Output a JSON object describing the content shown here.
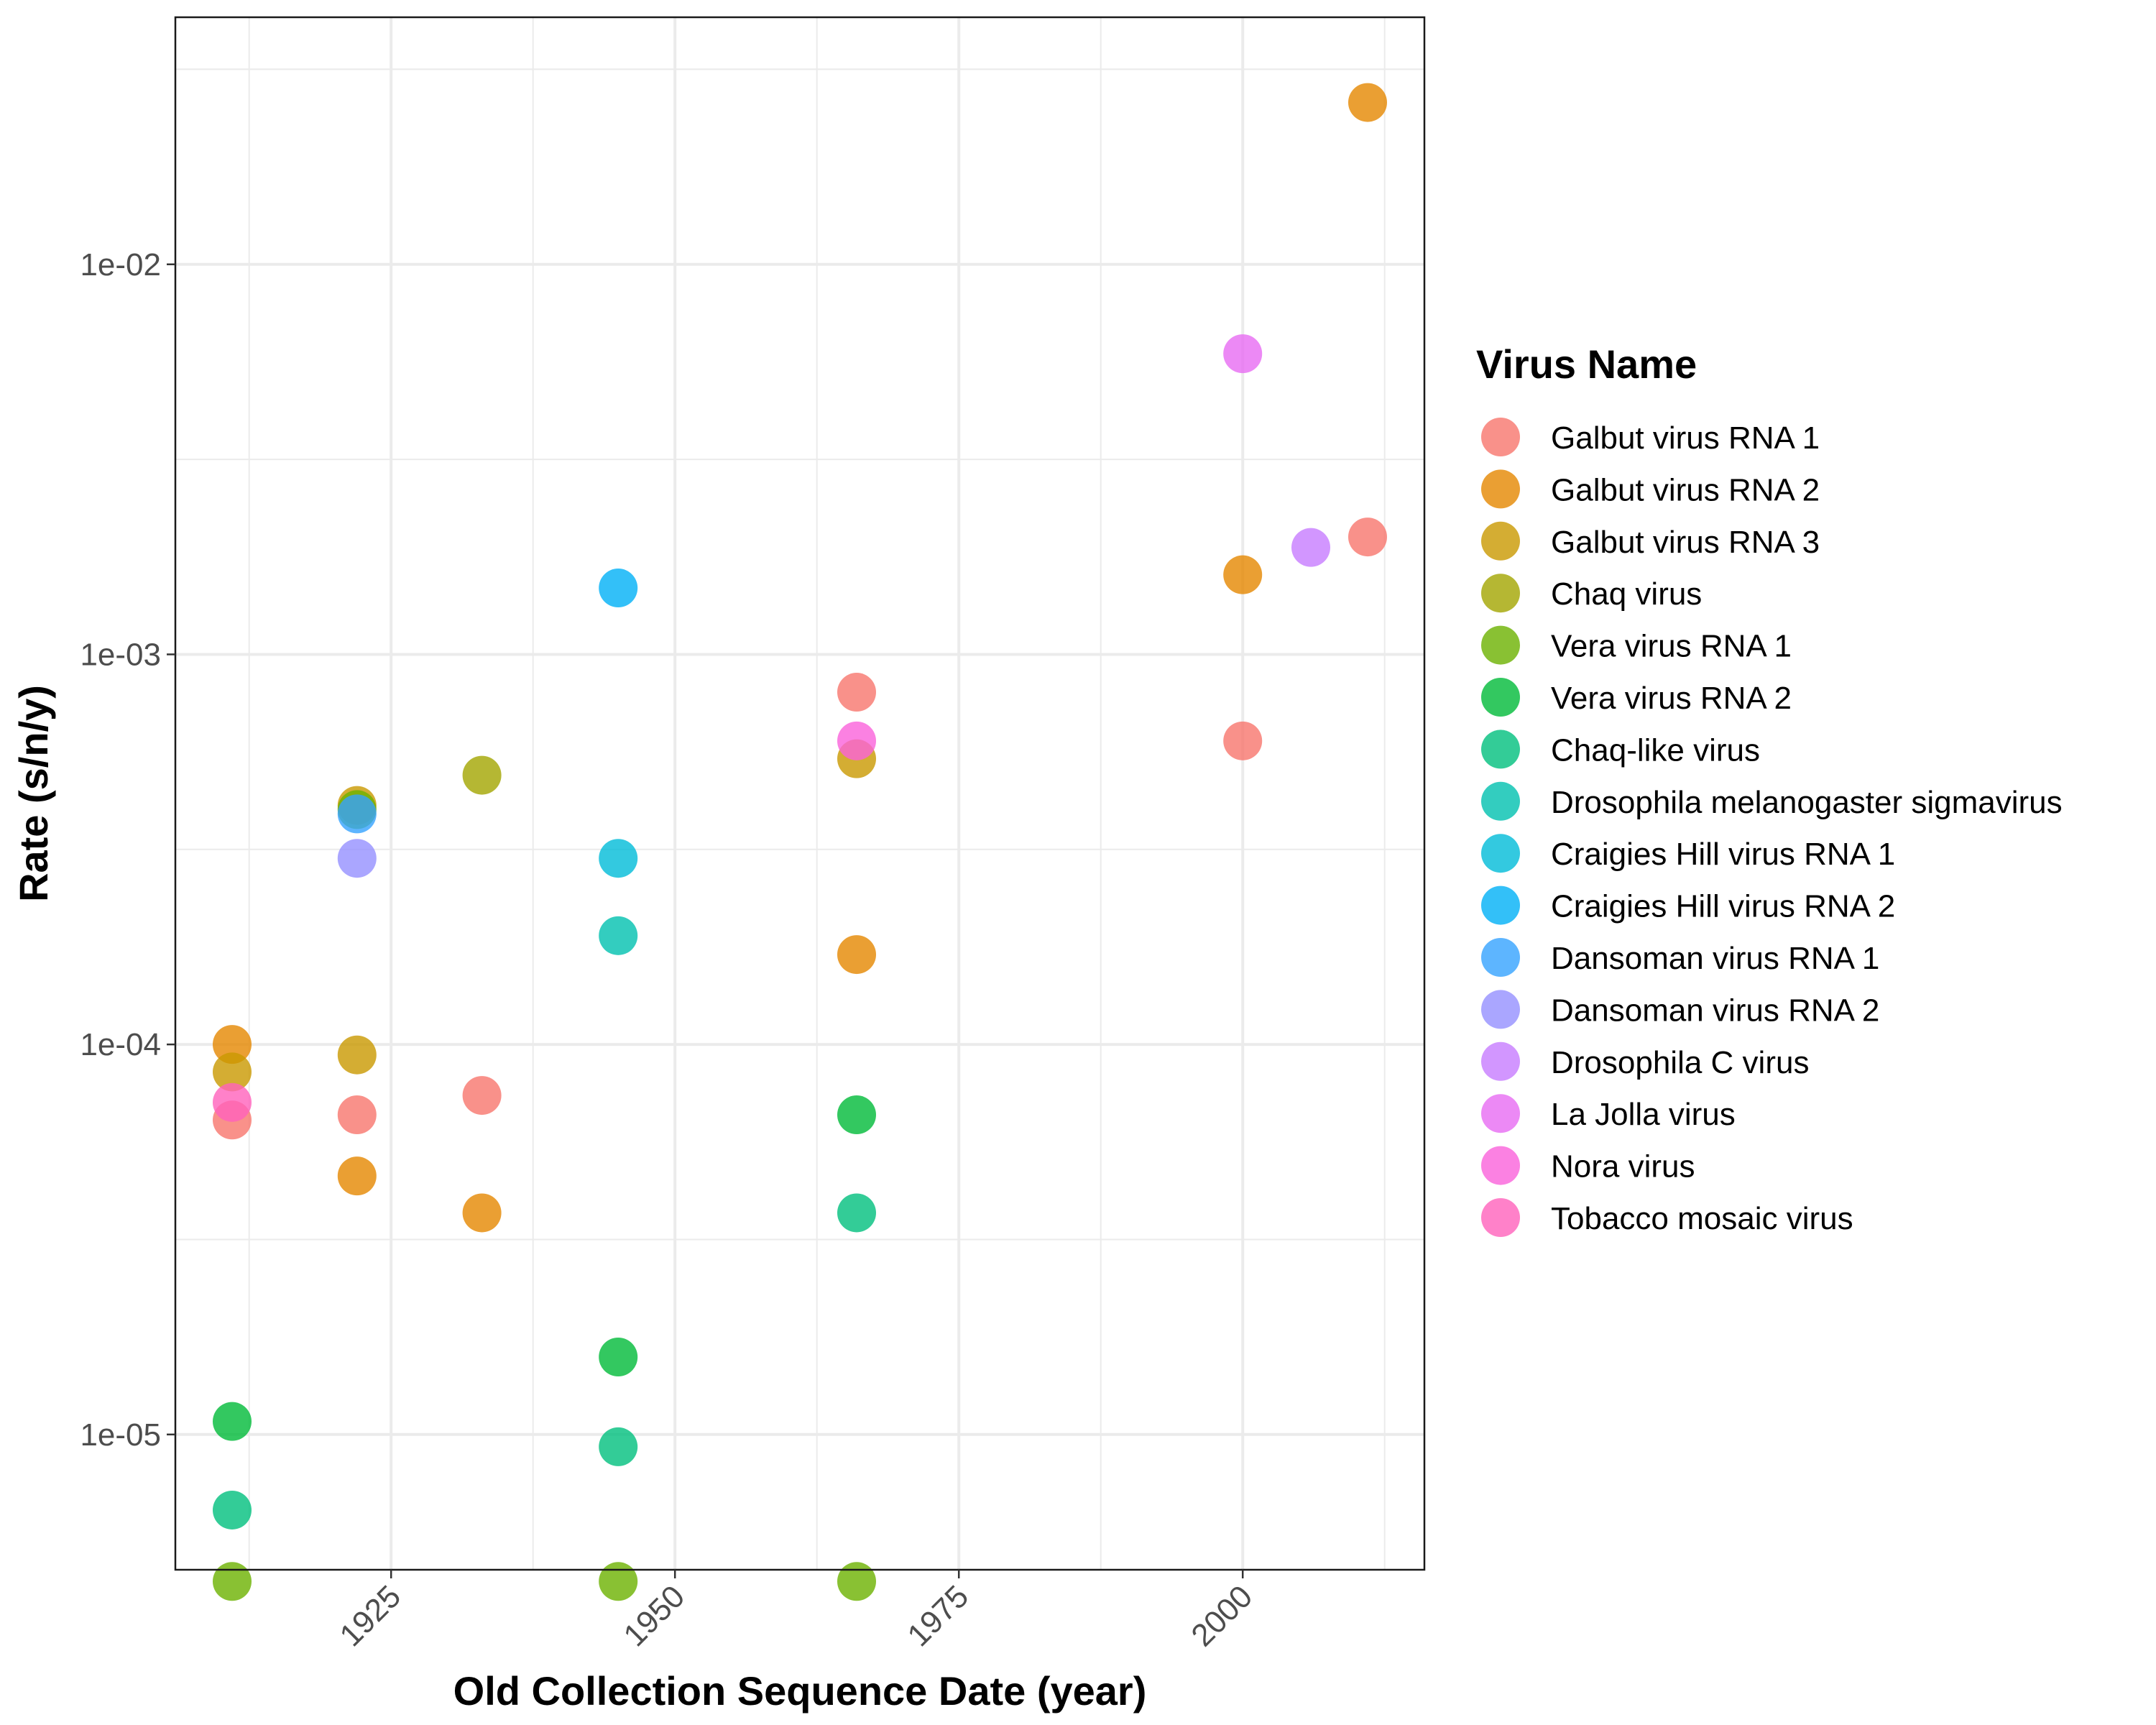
{
  "chart_data": {
    "type": "scatter",
    "xlabel": "Old Collection Sequence Date (year)",
    "ylabel": "Rate (s/n/y)",
    "y_scale": "log10",
    "xlim": [
      1906,
      2016
    ],
    "ylim": [
      4.5e-06,
      0.043
    ],
    "x_ticks": [
      1925,
      1950,
      1975,
      2000
    ],
    "x_tick_labels": [
      "1925",
      "1950",
      "1975",
      "2000"
    ],
    "y_ticks": [
      1e-05,
      0.0001,
      0.001,
      0.01
    ],
    "y_tick_labels": [
      "1e-05",
      "1e-04",
      "1e-03",
      "1e-02"
    ],
    "grid": true,
    "legend_title": "Virus Name",
    "legend_position": "right",
    "series": [
      {
        "name": "Galbut virus RNA 1",
        "color": "#F8766D",
        "points": [
          [
            1911,
            6.4e-05
          ],
          [
            1922,
            6.6e-05
          ],
          [
            1933,
            7.4e-05
          ],
          [
            1966,
            0.0008
          ],
          [
            2000,
            0.0006
          ],
          [
            2011,
            0.002
          ]
        ]
      },
      {
        "name": "Galbut virus RNA 2",
        "color": "#E58700",
        "points": [
          [
            1911,
            0.0001
          ],
          [
            1922,
            4.6e-05
          ],
          [
            1933,
            3.7e-05
          ],
          [
            1966,
            0.00017
          ],
          [
            2000,
            0.0016
          ],
          [
            2011,
            0.026
          ]
        ]
      },
      {
        "name": "Galbut virus RNA 3",
        "color": "#C99800",
        "points": [
          [
            1911,
            8.5e-05
          ],
          [
            1922,
            0.00041
          ],
          [
            1922,
            9.4e-05
          ],
          [
            1966,
            0.00054
          ]
        ]
      },
      {
        "name": "Chaq virus",
        "color": "#A3A500",
        "points": [
          [
            1933,
            0.00049
          ]
        ]
      },
      {
        "name": "Vera virus RNA 1",
        "color": "#6BB100",
        "points": [
          [
            1911,
            4.2e-06
          ],
          [
            1922,
            0.0004
          ],
          [
            1945,
            4.2e-06
          ],
          [
            1966,
            4.2e-06
          ]
        ]
      },
      {
        "name": "Vera virus RNA 2",
        "color": "#00BA38",
        "points": [
          [
            1911,
            1.08e-05
          ],
          [
            1945,
            1.58e-05
          ],
          [
            1966,
            6.6e-05
          ]
        ]
      },
      {
        "name": "Chaq-like virus",
        "color": "#00BF7D",
        "points": [
          [
            1911,
            6.4e-06
          ],
          [
            1945,
            9.3e-06
          ],
          [
            1966,
            3.7e-05
          ]
        ]
      },
      {
        "name": "Drosophila melanogaster sigmavirus",
        "color": "#00C0AF",
        "points": [
          [
            1945,
            0.00019
          ]
        ]
      },
      {
        "name": "Craigies Hill virus RNA 1",
        "color": "#00BCD8",
        "points": [
          [
            1945,
            0.0003
          ]
        ]
      },
      {
        "name": "Craigies Hill virus RNA 2",
        "color": "#00B0F6",
        "points": [
          [
            1945,
            0.00148
          ]
        ]
      },
      {
        "name": "Dansoman virus RNA 1",
        "color": "#35A2FF",
        "points": [
          [
            1922,
            0.00039
          ]
        ]
      },
      {
        "name": "Dansoman virus RNA 2",
        "color": "#9590FF",
        "points": [
          [
            1922,
            0.0003
          ]
        ]
      },
      {
        "name": "Drosophila C virus",
        "color": "#C77CFF",
        "points": [
          [
            2006,
            0.00188
          ]
        ]
      },
      {
        "name": "La Jolla virus",
        "color": "#E76BF3",
        "points": [
          [
            2000,
            0.0059
          ]
        ]
      },
      {
        "name": "Nora virus",
        "color": "#FA62DB",
        "points": [
          [
            1966,
            0.0006
          ]
        ]
      },
      {
        "name": "Tobacco mosaic virus",
        "color": "#FF62BC",
        "points": [
          [
            1911,
            7.1e-05
          ]
        ]
      }
    ]
  }
}
